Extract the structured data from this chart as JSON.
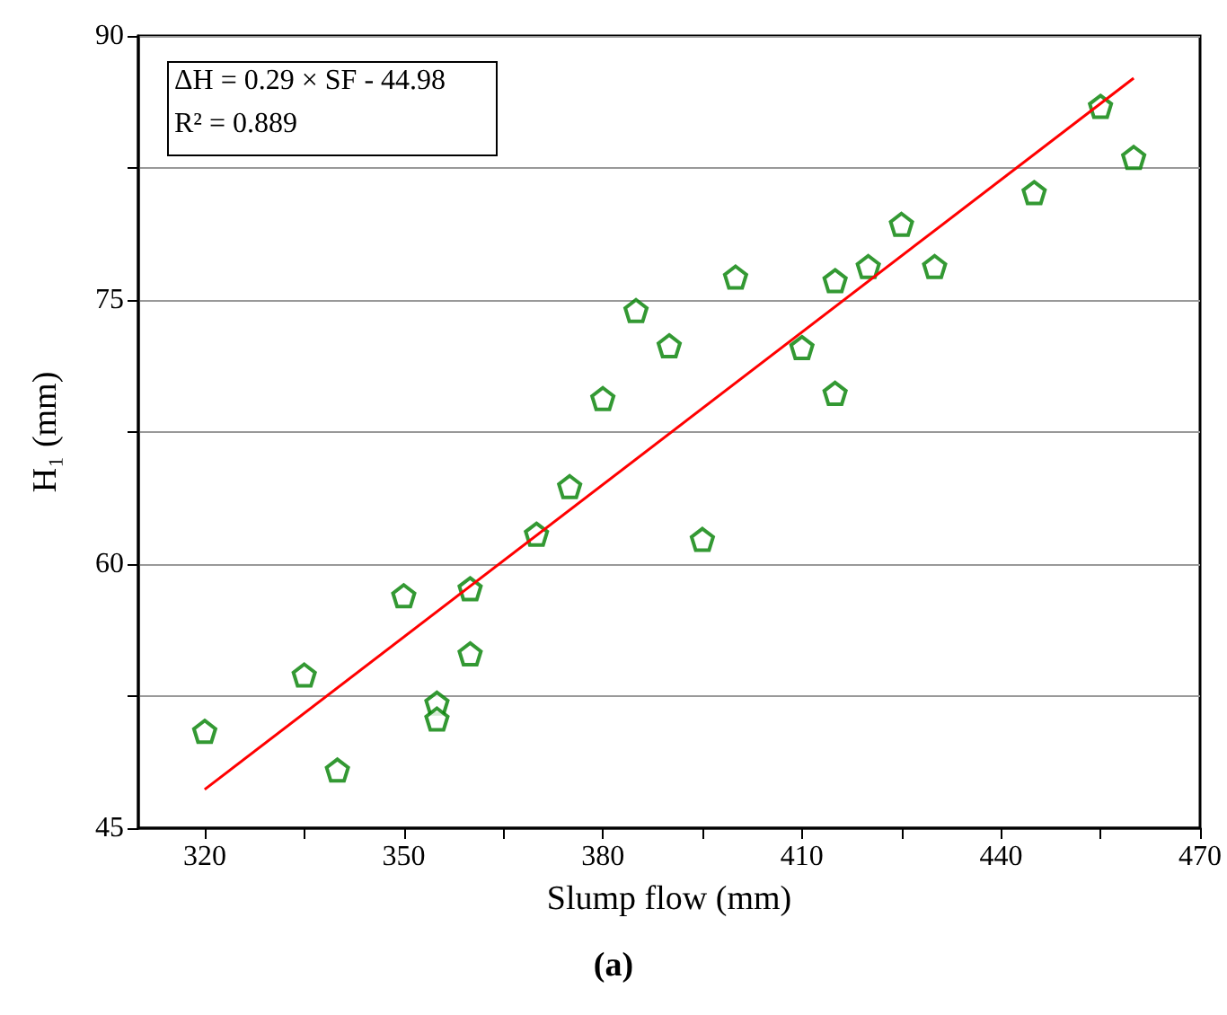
{
  "chart_data": {
    "type": "scatter",
    "xlabel": "Slump flow (mm)",
    "ylabel": "H₁ (mm)",
    "annotations": [
      "ΔH = 0.29 × SF - 44.98",
      "R² = 0.889",
      "(a)"
    ],
    "xlim": [
      310,
      470
    ],
    "xticks": [
      320,
      {
        "value": 335,
        "label": null
      },
      350,
      {
        "value": 365,
        "label": null
      },
      380,
      {
        "value": 395,
        "label": null
      },
      410,
      {
        "value": 425,
        "label": null
      },
      440,
      {
        "value": 455,
        "label": null
      },
      470
    ],
    "ylim": [
      45,
      90
    ],
    "yticks": [
      45,
      {
        "value": 52.5,
        "label": null
      },
      60,
      {
        "value": 67.5,
        "label": null
      },
      75,
      {
        "value": 82.5,
        "label": null
      },
      90
    ],
    "grid": "y",
    "series": [
      {
        "color": "#008000",
        "x": [
          320,
          335,
          340,
          350,
          355,
          355,
          360,
          360,
          370,
          375,
          380,
          385,
          390,
          395,
          400,
          410,
          415,
          415,
          420,
          425,
          430,
          445,
          455,
          460
        ],
        "values": [
          50.5,
          53.7,
          48.3,
          58.2,
          52.1,
          51.2,
          58.6,
          54.9,
          61.7,
          64.4,
          69.4,
          74.4,
          72.4,
          61.4,
          76.3,
          72.3,
          76.1,
          69.7,
          76.9,
          79.3,
          76.9,
          81.1,
          86.0,
          83.1
        ]
      },
      {
        "type": "line",
        "color": "#ff0000",
        "marker": "none",
        "line_style": "solid",
        "x": [
          320,
          460
        ],
        "values": [
          47.2,
          87.6
        ]
      }
    ]
  }
}
